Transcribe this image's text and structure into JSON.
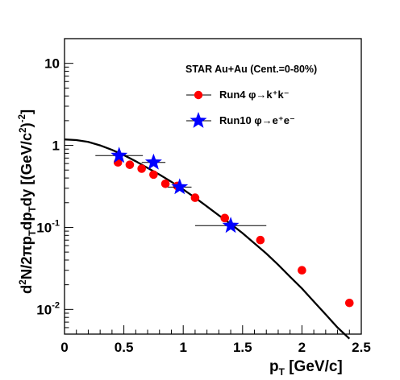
{
  "chart_data": {
    "type": "scatter",
    "title": "",
    "annotation": "STAR Au+Au (Cent.=0-80%)",
    "xlabel": "p_T [GeV/c]",
    "ylabel": "d^2N/2πp_Tdp_Tdy [(GeV/c^2)^-2]",
    "xlim": [
      0,
      2.5
    ],
    "ylim": [
      0.005,
      20
    ],
    "yscale": "log",
    "grid": false,
    "legend_position": "top-right",
    "x_ticks": [
      0,
      0.5,
      1,
      1.5,
      2,
      2.5
    ],
    "x_tick_labels": [
      "0",
      "0.5",
      "1",
      "1.5",
      "2",
      "2.5"
    ],
    "y_ticks": [
      0.01,
      0.1,
      1,
      10
    ],
    "series": [
      {
        "name": "Run4 φ→k⁺k⁻",
        "marker": "circle",
        "color": "#ff0000",
        "x": [
          0.45,
          0.55,
          0.65,
          0.75,
          0.85,
          0.95,
          1.1,
          1.35,
          1.65,
          2.0,
          2.4
        ],
        "y": [
          0.62,
          0.58,
          0.52,
          0.44,
          0.34,
          0.32,
          0.23,
          0.13,
          0.07,
          0.03,
          0.012
        ]
      },
      {
        "name": "Run10 φ→e⁺e⁻",
        "marker": "star",
        "color": "#0000ff",
        "x": [
          0.46,
          0.75,
          0.97,
          1.4
        ],
        "y": [
          0.75,
          0.62,
          0.31,
          0.105
        ],
        "x_err": [
          0.2,
          0.1,
          0.1,
          0.3
        ]
      },
      {
        "name": "",
        "type": "line",
        "color": "#000000",
        "x": [
          0,
          0.1,
          0.2,
          0.3,
          0.4,
          0.5,
          0.6,
          0.7,
          0.8,
          0.9,
          1.0,
          1.1,
          1.2,
          1.3,
          1.4,
          1.5,
          1.6,
          1.7,
          1.8,
          1.9,
          2.0,
          2.1,
          2.2,
          2.3,
          2.4
        ],
        "y": [
          1.18,
          1.16,
          1.1,
          1.0,
          0.88,
          0.76,
          0.64,
          0.53,
          0.44,
          0.36,
          0.29,
          0.23,
          0.18,
          0.14,
          0.11,
          0.085,
          0.064,
          0.048,
          0.035,
          0.025,
          0.018,
          0.0125,
          0.0087,
          0.006,
          0.0044
        ]
      }
    ]
  }
}
